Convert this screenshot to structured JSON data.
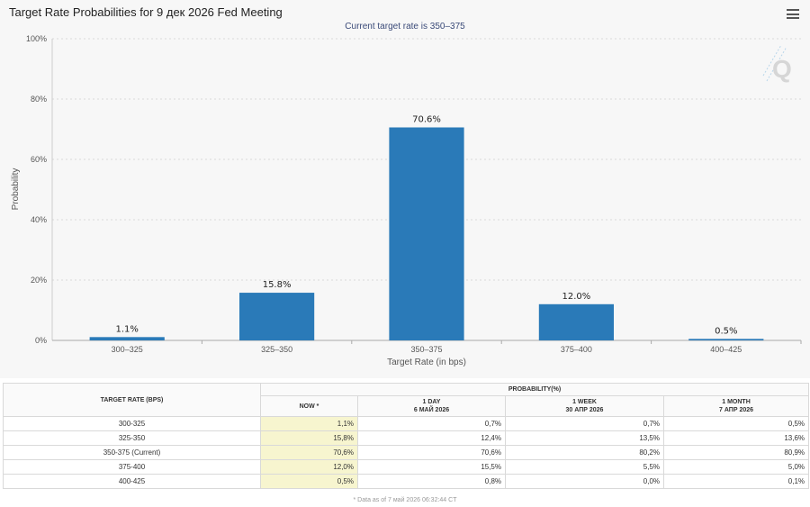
{
  "chart_data": {
    "type": "bar",
    "title": "Target Rate Probabilities for 9 дек 2026 Fed Meeting",
    "subtitle": "Current target rate is 350–375",
    "xlabel": "Target Rate (in bps)",
    "ylabel": "Probability",
    "categories": [
      "300–325",
      "325–350",
      "350–375",
      "375–400",
      "400–425"
    ],
    "values": [
      1.1,
      15.8,
      70.6,
      12.0,
      0.5
    ],
    "value_labels": [
      "1.1%",
      "15.8%",
      "70.6%",
      "12.0%",
      "0.5%"
    ],
    "ylim": [
      0,
      100
    ],
    "yticks": [
      "0%",
      "20%",
      "40%",
      "60%",
      "80%",
      "100%"
    ],
    "grid": true,
    "bar_color": "#2a7ab8"
  },
  "table": {
    "header_rate": "TARGET RATE (BPS)",
    "header_prob": "PROBABILITY(%)",
    "col_now": "NOW *",
    "col_1day": [
      "1 DAY",
      "6 МАЙ 2026"
    ],
    "col_1week": [
      "1 WEEK",
      "30 АПР 2026"
    ],
    "col_1month": [
      "1 MONTH",
      "7 АПР 2026"
    ],
    "rows": [
      {
        "rate": "300-325",
        "now": "1,1%",
        "d1": "0,7%",
        "w1": "0,7%",
        "m1": "0,5%"
      },
      {
        "rate": "325-350",
        "now": "15,8%",
        "d1": "12,4%",
        "w1": "13,5%",
        "m1": "13,6%"
      },
      {
        "rate": "350-375 (Current)",
        "now": "70,6%",
        "d1": "70,6%",
        "w1": "80,2%",
        "m1": "80,9%"
      },
      {
        "rate": "375-400",
        "now": "12,0%",
        "d1": "15,5%",
        "w1": "5,5%",
        "m1": "5,0%"
      },
      {
        "rate": "400-425",
        "now": "0,5%",
        "d1": "0,8%",
        "w1": "0,0%",
        "m1": "0,1%"
      }
    ],
    "footnote": "* Data as of 7 май 2026 06:32:44 CT"
  }
}
